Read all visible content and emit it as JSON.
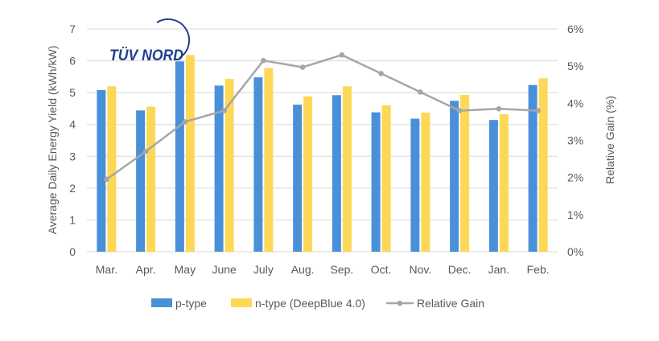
{
  "logo": {
    "text": "TÜV NORD"
  },
  "colors": {
    "p_type": "#4a90d9",
    "n_type": "#fcd856",
    "gain_line": "#a6a6a6",
    "grid": "#d9d9d9",
    "axis_text": "#595959",
    "logo": "#1f3f8f"
  },
  "chart_data": {
    "type": "bar",
    "categories": [
      "Mar.",
      "Apr.",
      "May",
      "June",
      "July",
      "Aug.",
      "Sep.",
      "Oct.",
      "Nov.",
      "Dec.",
      "Jan.",
      "Feb."
    ],
    "series": [
      {
        "name": "p-type",
        "type": "bar",
        "axis": "left",
        "values": [
          5.08,
          4.44,
          5.98,
          5.22,
          5.48,
          4.62,
          4.92,
          4.38,
          4.18,
          4.74,
          4.14,
          5.24
        ]
      },
      {
        "name": "n-type (DeepBlue 4.0)",
        "type": "bar",
        "axis": "left",
        "values": [
          5.2,
          4.56,
          6.18,
          5.43,
          5.77,
          4.88,
          5.2,
          4.6,
          4.37,
          4.93,
          4.32,
          5.45
        ]
      },
      {
        "name": "Relative Gain",
        "type": "line",
        "axis": "right",
        "values": [
          1.95,
          2.7,
          3.5,
          3.8,
          5.15,
          4.97,
          5.3,
          4.8,
          4.3,
          3.8,
          3.85,
          3.8
        ]
      }
    ],
    "ylabel": "Average Daily Energy Yield  (kWh/kW)",
    "y2label": "Relative Gain  (%)",
    "ylim": [
      0,
      7
    ],
    "y2lim": [
      0,
      6
    ],
    "yticks": [
      "0",
      "1",
      "2",
      "3",
      "4",
      "5",
      "6",
      "7"
    ],
    "y2ticks": [
      "0%",
      "1%",
      "2%",
      "3%",
      "4%",
      "5%",
      "6%"
    ],
    "grid": true,
    "legend": {
      "position": "bottom",
      "entries": [
        "p-type",
        "n-type (DeepBlue 4.0)",
        "Relative Gain"
      ]
    }
  }
}
